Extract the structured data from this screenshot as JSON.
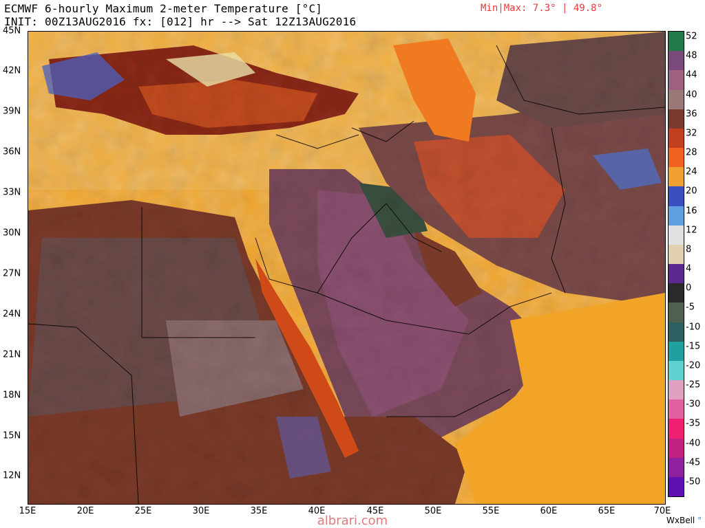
{
  "header": {
    "title": "ECMWF 6-hourly Maximum 2-meter Temperature [°C]",
    "init_line": "INIT: 00Z13AUG2016 fx: [012] hr --> Sat 12Z13AUG2016",
    "minmax": "Min|Max: 7.3° | 49.8°"
  },
  "map": {
    "lat_labels": [
      "45N",
      "42N",
      "39N",
      "36N",
      "33N",
      "30N",
      "27N",
      "24N",
      "21N",
      "18N",
      "15N",
      "12N"
    ],
    "lon_labels": [
      "15E",
      "20E",
      "25E",
      "30E",
      "35E",
      "40E",
      "45E",
      "50E",
      "55E",
      "60E",
      "65E",
      "70E"
    ],
    "land_color": "#6a4a48",
    "sea_color": "#f0a020"
  },
  "colorbar": {
    "labels": [
      "52",
      "48",
      "44",
      "40",
      "36",
      "32",
      "28",
      "24",
      "20",
      "16",
      "12",
      "8",
      "4",
      "0",
      "-5",
      "-10",
      "-15",
      "-20",
      "-25",
      "-30",
      "-35",
      "-40",
      "-45",
      "-50"
    ],
    "colors": [
      "#1f7a48",
      "#7a4a7a",
      "#a06080",
      "#9a7a78",
      "#7a3a30",
      "#c04020",
      "#f06020",
      "#f0a030",
      "#3a50c0",
      "#60a0e0",
      "#e0e0e0",
      "#e0d0b0",
      "#5a2a90",
      "#2a2a2a",
      "#506050",
      "#2a6060",
      "#20a0a0",
      "#60d0d0",
      "#e0a0c0",
      "#e060a0",
      "#f02070",
      "#c02080",
      "#9020a0",
      "#6010b0"
    ]
  },
  "footer": {
    "credit": "WxBell",
    "watermark": "albrari.com"
  }
}
